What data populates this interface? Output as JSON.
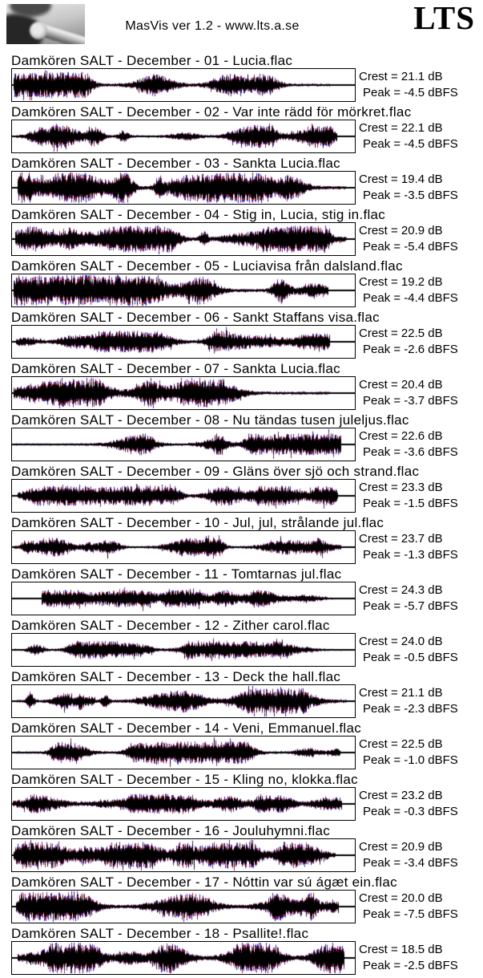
{
  "header": {
    "app_title": "MasVis ver 1.2 - www.lts.a.se",
    "brand": "LTS",
    "logo": "metal-tube-photo"
  },
  "colors": {
    "waveform_left_channel": "#cc2020",
    "waveform_right_channel": "#2020cc",
    "waveform_body": "#000000",
    "plot_border": "#000000",
    "background": "#ffffff"
  },
  "tracks": [
    {
      "title": "Damkören SALT - December - 01 - Lucia.flac",
      "crest_label": "Crest = 21.1 dB",
      "peak_label": "Peak = -4.5 dBFS"
    },
    {
      "title": "Damkören SALT - December - 02 - Var inte rädd för mörkret.flac",
      "crest_label": "Crest = 22.1 dB",
      "peak_label": "Peak = -4.5 dBFS"
    },
    {
      "title": "Damkören SALT - December - 03 - Sankta Lucia.flac",
      "crest_label": "Crest = 19.4 dB",
      "peak_label": "Peak = -3.5 dBFS"
    },
    {
      "title": "Damkören SALT - December - 04 - Stig in, Lucia, stig in.flac",
      "crest_label": "Crest = 20.9 dB",
      "peak_label": "Peak = -5.4 dBFS"
    },
    {
      "title": "Damkören SALT - December - 05 - Luciavisa från dalsland.flac",
      "crest_label": "Crest = 19.2 dB",
      "peak_label": "Peak = -4.4 dBFS"
    },
    {
      "title": "Damkören SALT - December - 06 - Sankt Staffans visa.flac",
      "crest_label": "Crest = 22.5 dB",
      "peak_label": "Peak = -2.6 dBFS"
    },
    {
      "title": "Damkören SALT - December - 07 - Sankta Lucia.flac",
      "crest_label": "Crest = 20.4 dB",
      "peak_label": "Peak = -3.7 dBFS"
    },
    {
      "title": "Damkören SALT - December - 08 - Nu tändas tusen juleljus.flac",
      "crest_label": "Crest = 22.6 dB",
      "peak_label": "Peak = -3.6 dBFS"
    },
    {
      "title": "Damkören SALT - December - 09 - Gläns över sjö och strand.flac",
      "crest_label": "Crest = 23.3 dB",
      "peak_label": "Peak = -1.5 dBFS"
    },
    {
      "title": "Damkören SALT - December - 10 - Jul, jul, strålande jul.flac",
      "crest_label": "Crest = 23.7 dB",
      "peak_label": "Peak = -1.3 dBFS"
    },
    {
      "title": "Damkören SALT - December - 11 - Tomtarnas jul.flac",
      "crest_label": "Crest = 24.3 dB",
      "peak_label": "Peak = -5.7 dBFS"
    },
    {
      "title": "Damkören SALT - December - 12 - Zither carol.flac",
      "crest_label": "Crest = 24.0 dB",
      "peak_label": "Peak = -0.5 dBFS"
    },
    {
      "title": "Damkören SALT - December - 13 - Deck the hall.flac",
      "crest_label": "Crest = 21.1 dB",
      "peak_label": "Peak = -2.3 dBFS"
    },
    {
      "title": "Damkören SALT - December - 14 - Veni, Emmanuel.flac",
      "crest_label": "Crest = 22.5 dB",
      "peak_label": "Peak = -1.0 dBFS"
    },
    {
      "title": "Damkören SALT - December - 15 - Kling no, klokka.flac",
      "crest_label": "Crest = 23.2 dB",
      "peak_label": "Peak = -0.3 dBFS"
    },
    {
      "title": "Damkören SALT - December - 16 - Jouluhymni.flac",
      "crest_label": "Crest = 20.9 dB",
      "peak_label": "Peak = -3.4 dBFS"
    },
    {
      "title": "Damkören SALT - December - 17 - Nóttin var sú ágæt ein.flac",
      "crest_label": "Crest = 20.0 dB",
      "peak_label": "Peak = -7.5 dBFS"
    },
    {
      "title": "Damkören SALT - December - 18 - Psallite!.flac",
      "crest_label": "Crest = 18.5 dB",
      "peak_label": "Peak = -2.5 dBFS"
    }
  ],
  "chart_data": {
    "type": "area",
    "title": "MasVis ver 1.2 - www.lts.a.se",
    "description": "Per-track stereo waveform overview; black body with red (left) and blue (right) channel peaks around a horizontal zero line",
    "categories": [
      "01 - Lucia",
      "02 - Var inte rädd för mörkret",
      "03 - Sankta Lucia",
      "04 - Stig in, Lucia, stig in",
      "05 - Luciavisa från dalsland",
      "06 - Sankt Staffans visa",
      "07 - Sankta Lucia",
      "08 - Nu tändas tusen juleljus",
      "09 - Gläns över sjö och strand",
      "10 - Jul, jul, strålande jul",
      "11 - Tomtarnas jul",
      "12 - Zither carol",
      "13 - Deck the hall",
      "14 - Veni, Emmanuel",
      "15 - Kling no, klokka",
      "16 - Jouluhymni",
      "17 - Nóttin var sú ágæt ein",
      "18 - Psallite!"
    ],
    "series": [
      {
        "name": "Crest (dB)",
        "values": [
          21.1,
          22.1,
          19.4,
          20.9,
          19.2,
          22.5,
          20.4,
          22.6,
          23.3,
          23.7,
          24.3,
          24.0,
          21.1,
          22.5,
          23.2,
          20.9,
          20.0,
          18.5
        ]
      },
      {
        "name": "Peak (dBFS)",
        "values": [
          -4.5,
          -4.5,
          -3.5,
          -5.4,
          -4.4,
          -2.6,
          -3.7,
          -3.6,
          -1.5,
          -1.3,
          -5.7,
          -0.5,
          -2.3,
          -1.0,
          -0.3,
          -3.4,
          -7.5,
          -2.5
        ]
      }
    ],
    "legend_position": "none",
    "grid": false
  }
}
